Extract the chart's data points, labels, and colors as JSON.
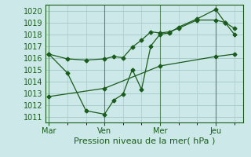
{
  "title": "Pression niveau de la mer( hPa )",
  "bg_color": "#cce8e8",
  "grid_color": "#aacccc",
  "line_color": "#1a5c1a",
  "ylim": [
    1010.5,
    1020.5
  ],
  "yticks": [
    1011,
    1012,
    1013,
    1014,
    1015,
    1016,
    1017,
    1018,
    1019,
    1020
  ],
  "xtick_labels": [
    "Mar",
    "Ven",
    "Mer",
    "Jeu"
  ],
  "xtick_positions": [
    0,
    30,
    60,
    90
  ],
  "xlim": [
    -2,
    105
  ],
  "series1_x": [
    0,
    10,
    20,
    30,
    35,
    40,
    45,
    50,
    55,
    60,
    65,
    70,
    80,
    90,
    95,
    100
  ],
  "series1_y": [
    1016.3,
    1015.9,
    1015.8,
    1015.9,
    1016.1,
    1016.0,
    1016.9,
    1017.5,
    1018.2,
    1018.1,
    1018.2,
    1018.5,
    1019.2,
    1019.2,
    1019.0,
    1018.0
  ],
  "series2_x": [
    0,
    10,
    20,
    30,
    35,
    40,
    45,
    50,
    55,
    60,
    65,
    70,
    80,
    90,
    95,
    100
  ],
  "series2_y": [
    1016.3,
    1014.7,
    1011.5,
    1011.2,
    1012.4,
    1012.9,
    1015.0,
    1013.3,
    1017.0,
    1018.0,
    1018.1,
    1018.6,
    1019.3,
    1020.1,
    1019.0,
    1018.5
  ],
  "series3_x": [
    0,
    30,
    60,
    90,
    100
  ],
  "series3_y": [
    1012.7,
    1013.4,
    1015.3,
    1016.1,
    1016.3
  ]
}
